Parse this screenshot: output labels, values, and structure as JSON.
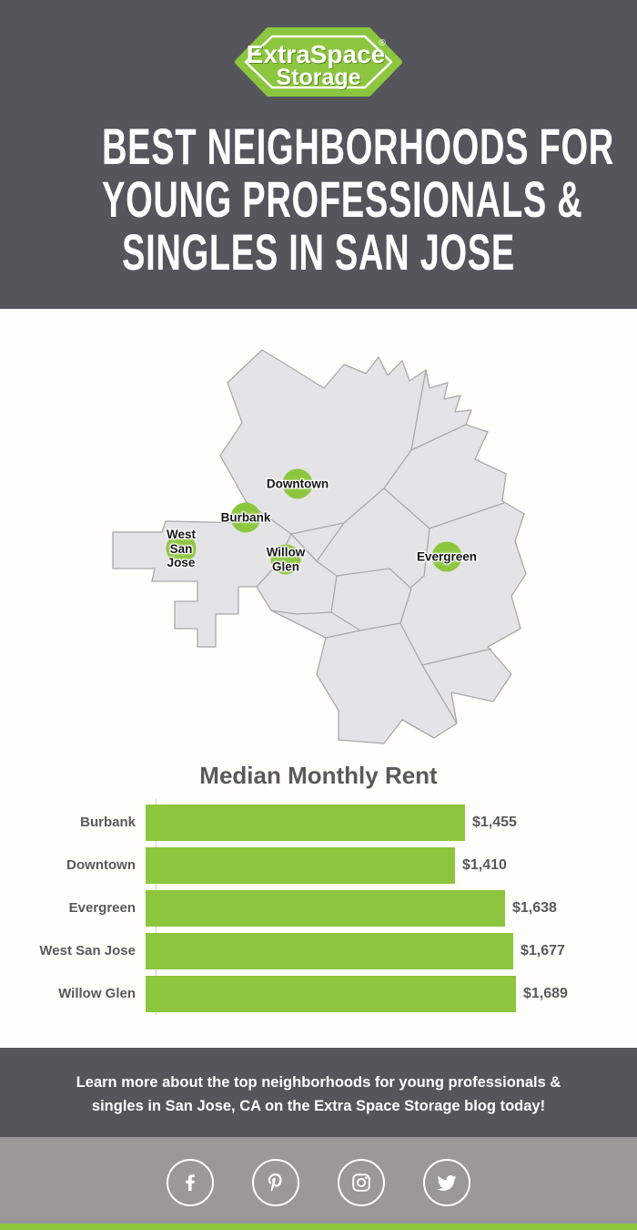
{
  "colors": {
    "green": "#8CC63E",
    "dark_gray": "#54565B",
    "map_fill": "#E4E4E6",
    "map_stroke": "#A9A9AC",
    "chart_text": "#58595B",
    "social_band": "#9A9899",
    "white": "#FFFFFF"
  },
  "brand": {
    "logo_line1": "ExtraSpace",
    "logo_line2": "Storage",
    "registered_mark": "®"
  },
  "header": {
    "title_lines": [
      "BEST NEIGHBORHOODS FOR",
      "YOUNG PROFESSIONALS &",
      "SINGLES IN SAN JOSE"
    ]
  },
  "map": {
    "markers": [
      {
        "name": "downtown",
        "lines": [
          "Downtown"
        ],
        "x": 207,
        "y": 153
      },
      {
        "name": "burbank",
        "lines": [
          "Burbank"
        ],
        "x": 150,
        "y": 190
      },
      {
        "name": "west-san-jose",
        "lines": [
          "West",
          "San",
          "Jose"
        ],
        "x": 79,
        "y": 224
      },
      {
        "name": "willow-glen",
        "lines": [
          "Willow",
          "Glen"
        ],
        "x": 194,
        "y": 236
      },
      {
        "name": "evergreen",
        "lines": [
          "Evergreen"
        ],
        "x": 371,
        "y": 233
      }
    ]
  },
  "chart_data": {
    "type": "bar",
    "orientation": "horizontal",
    "title": "Median Monthly Rent",
    "categories": [
      "Burbank",
      "Downtown",
      "Evergreen",
      "West San Jose",
      "Willow Glen"
    ],
    "values": [
      1455,
      1410,
      1638,
      1677,
      1689
    ],
    "value_labels": [
      "$1,455",
      "$1,410",
      "$1,638",
      "$1,677",
      "$1,689"
    ],
    "xlabel": "",
    "ylabel": "",
    "xlim": [
      0,
      1750
    ],
    "grid": false,
    "legend": false,
    "bar_color": "#8CC63E"
  },
  "footer": {
    "line1": "Learn more about the top neighborhoods for young professionals &",
    "line2": "singles in San Jose, CA on the Extra Space Storage blog today!"
  },
  "social": {
    "icons": [
      "facebook",
      "pinterest",
      "instagram",
      "twitter"
    ]
  }
}
